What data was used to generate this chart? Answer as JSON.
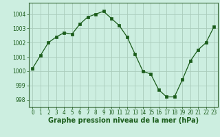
{
  "x": [
    0,
    1,
    2,
    3,
    4,
    5,
    6,
    7,
    8,
    9,
    10,
    11,
    12,
    13,
    14,
    15,
    16,
    17,
    18,
    19,
    20,
    21,
    22,
    23
  ],
  "y": [
    1000.2,
    1001.1,
    1002.0,
    1002.4,
    1002.7,
    1002.6,
    1003.3,
    1003.8,
    1004.0,
    1004.2,
    1003.7,
    1003.2,
    1002.4,
    1001.2,
    1000.0,
    999.8,
    998.7,
    998.2,
    998.2,
    999.4,
    1000.7,
    1001.5,
    1002.0,
    1003.1
  ],
  "line_color": "#1a5c1a",
  "marker": "s",
  "marker_size": 2.5,
  "bg_color": "#cceee0",
  "grid_color": "#aaccbb",
  "xlabel": "Graphe pression niveau de la mer (hPa)",
  "xlabel_color": "#1a5c1a",
  "xlim": [
    -0.5,
    23.5
  ],
  "ylim": [
    997.5,
    1004.8
  ],
  "yticks": [
    998,
    999,
    1000,
    1001,
    1002,
    1003,
    1004
  ],
  "xticks": [
    0,
    1,
    2,
    3,
    4,
    5,
    6,
    7,
    8,
    9,
    10,
    11,
    12,
    13,
    14,
    15,
    16,
    17,
    18,
    19,
    20,
    21,
    22,
    23
  ],
  "tick_label_size": 5.5,
  "xlabel_size": 7.0,
  "spine_color": "#336633"
}
